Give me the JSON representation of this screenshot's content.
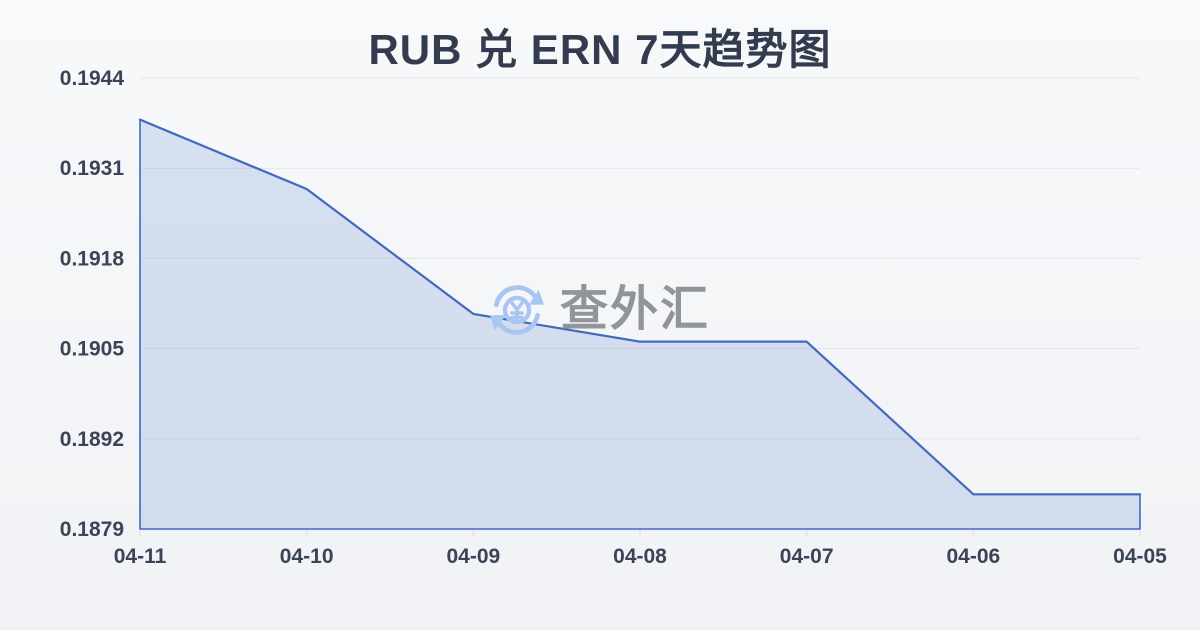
{
  "chart": {
    "title": "RUB 兑 ERN 7天趋势图"
  },
  "watermark": {
    "icon": "yuan-refresh-icon",
    "text": "查外汇"
  },
  "chart_data": {
    "type": "area",
    "categories": [
      "04-11",
      "04-10",
      "04-09",
      "04-08",
      "04-07",
      "04-06",
      "04-05"
    ],
    "values": [
      0.1938,
      0.1928,
      0.191,
      0.1906,
      0.1906,
      0.1884,
      0.1884
    ],
    "title": "RUB 兑 ERN 7天趋势图",
    "xlabel": "",
    "ylabel": "",
    "ylim": [
      0.1879,
      0.1944
    ],
    "yticks": [
      0.1944,
      0.1931,
      0.1918,
      0.1905,
      0.1892,
      0.1879
    ],
    "y_tick_decimals": 4,
    "grid": true,
    "legend": false,
    "colors": {
      "line": "#4169be",
      "fill": "rgba(68,114,196,0.18)",
      "gridline": "#e3e5e9",
      "tick": "#d9dbe0",
      "label": "#3b4457",
      "title": "#333b4e",
      "watermark_icon": "#a9c6f3",
      "watermark_text": "#919499"
    }
  }
}
